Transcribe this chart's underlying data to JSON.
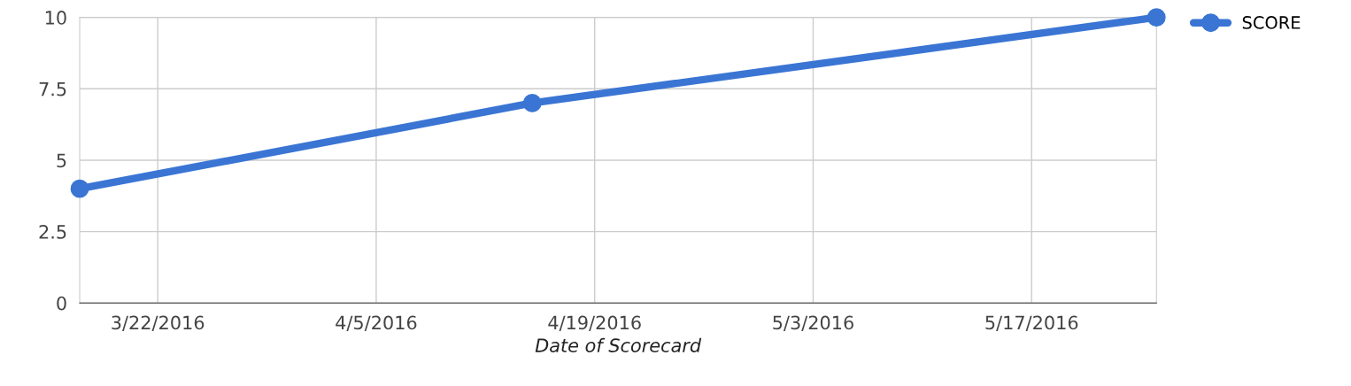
{
  "chart_data": {
    "type": "line",
    "xlabel": "Date of Scorecard",
    "x": [
      "2016-03-17",
      "2016-04-15",
      "2016-05-25"
    ],
    "series": [
      {
        "name": "SCORE",
        "color": "#3a75d4",
        "values": [
          4,
          7,
          10
        ]
      }
    ],
    "xlim": [
      "2016-03-17",
      "2016-05-25"
    ],
    "xticks": [
      {
        "value": "2016-03-22",
        "label": "3/22/2016"
      },
      {
        "value": "2016-04-05",
        "label": "4/5/2016"
      },
      {
        "value": "2016-04-19",
        "label": "4/19/2016"
      },
      {
        "value": "2016-05-03",
        "label": "5/3/2016"
      },
      {
        "value": "2016-05-17",
        "label": "5/17/2016"
      }
    ],
    "ylim": [
      0,
      10
    ],
    "yticks": [
      0,
      2.5,
      5,
      7.5,
      10
    ],
    "grid": true,
    "legend": "right",
    "marker": "circle",
    "line_style": "solid"
  }
}
